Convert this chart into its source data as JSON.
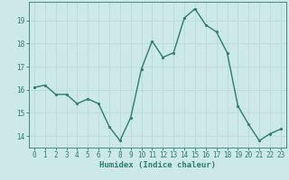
{
  "x": [
    0,
    1,
    2,
    3,
    4,
    5,
    6,
    7,
    8,
    9,
    10,
    11,
    12,
    13,
    14,
    15,
    16,
    17,
    18,
    19,
    20,
    21,
    22,
    23
  ],
  "y": [
    16.1,
    16.2,
    15.8,
    15.8,
    15.4,
    15.6,
    15.4,
    14.4,
    13.8,
    14.8,
    16.9,
    18.1,
    17.4,
    17.6,
    19.1,
    19.5,
    18.8,
    18.5,
    17.6,
    15.3,
    14.5,
    13.8,
    14.1,
    14.3
  ],
  "line_color": "#2d7d6e",
  "marker": "o",
  "marker_size": 2.0,
  "line_width": 1.0,
  "xlabel": "Humidex (Indice chaleur)",
  "xlabel_fontsize": 6.5,
  "ylim": [
    13.5,
    19.8
  ],
  "xlim": [
    -0.5,
    23.5
  ],
  "yticks": [
    14,
    15,
    16,
    17,
    18,
    19
  ],
  "xticks": [
    0,
    1,
    2,
    3,
    4,
    5,
    6,
    7,
    8,
    9,
    10,
    11,
    12,
    13,
    14,
    15,
    16,
    17,
    18,
    19,
    20,
    21,
    22,
    23
  ],
  "grid_color": "#b8dada",
  "grid_color_minor": "#d0e8e8",
  "background_color": "#cce8e8",
  "tick_label_fontsize": 5.5
}
